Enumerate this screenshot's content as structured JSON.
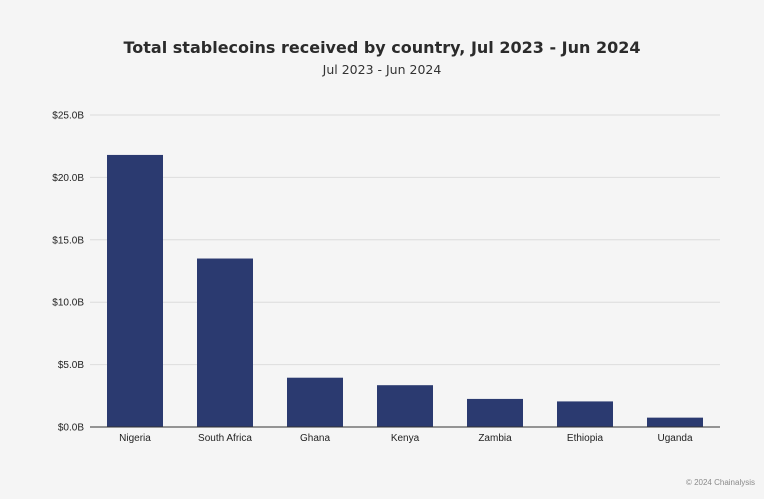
{
  "chart_data": {
    "type": "bar",
    "title": "Total stablecoins received by country, Jul 2023 - Jun 2024",
    "subtitle": "Jul 2023 - Jun 2024",
    "categories": [
      "Nigeria",
      "South Africa",
      "Ghana",
      "Kenya",
      "Zambia",
      "Ethiopia",
      "Uganda"
    ],
    "values": [
      21.8,
      13.5,
      3.95,
      3.35,
      2.25,
      2.05,
      0.75
    ],
    "unit": "billion USD",
    "ylim": [
      0,
      25
    ],
    "yticks": [
      0,
      5,
      10,
      15,
      20,
      25
    ],
    "ytick_labels": [
      "$0.0B",
      "$5.0B",
      "$10.0B",
      "$15.0B",
      "$20.0B",
      "$25.0B"
    ],
    "xlabel": "",
    "ylabel": "",
    "grid": true,
    "bar_color": "#2b3a70"
  },
  "credit": "© 2024 Chainalysis"
}
